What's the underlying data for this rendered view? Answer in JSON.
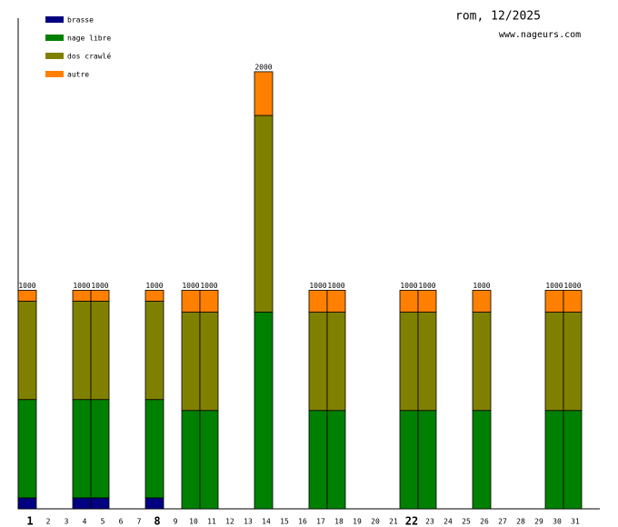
{
  "chart_data": {
    "type": "stacked_bar",
    "title": "rom, 12/2025",
    "subtitle": "www.nageurs.com",
    "categories": [
      "1",
      "2",
      "3",
      "4",
      "5",
      "6",
      "7",
      "8",
      "9",
      "10",
      "11",
      "12",
      "13",
      "14",
      "15",
      "16",
      "17",
      "18",
      "19",
      "20",
      "21",
      "22",
      "23",
      "24",
      "25",
      "26",
      "27",
      "28",
      "29",
      "30",
      "31"
    ],
    "bold_categories": [
      "1",
      "8",
      "22"
    ],
    "series": [
      {
        "name": "brasse",
        "color": "#000080",
        "values": [
          50,
          null,
          null,
          50,
          50,
          null,
          null,
          50,
          null,
          null,
          null,
          null,
          null,
          null,
          null,
          null,
          null,
          null,
          null,
          null,
          null,
          null,
          null,
          null,
          null,
          null,
          null,
          null,
          null,
          null,
          null
        ]
      },
      {
        "name": "nage libre",
        "color": "#008000",
        "values": [
          450,
          null,
          null,
          450,
          450,
          null,
          null,
          450,
          null,
          450,
          450,
          null,
          null,
          900,
          null,
          null,
          450,
          450,
          null,
          null,
          null,
          450,
          450,
          null,
          null,
          450,
          null,
          null,
          null,
          450,
          450
        ]
      },
      {
        "name": "dos crawlé",
        "color": "#808000",
        "values": [
          450,
          null,
          null,
          450,
          450,
          null,
          null,
          450,
          null,
          450,
          450,
          null,
          null,
          900,
          null,
          null,
          450,
          450,
          null,
          null,
          null,
          450,
          450,
          null,
          null,
          450,
          null,
          null,
          null,
          450,
          450
        ]
      },
      {
        "name": "autre",
        "color": "#ff8000",
        "values": [
          50,
          null,
          null,
          50,
          50,
          null,
          null,
          50,
          null,
          100,
          100,
          null,
          null,
          200,
          null,
          null,
          100,
          100,
          null,
          null,
          null,
          100,
          100,
          null,
          null,
          100,
          null,
          null,
          null,
          100,
          100
        ]
      }
    ],
    "totals": [
      1000,
      null,
      null,
      1000,
      1000,
      null,
      null,
      1000,
      null,
      1000,
      1000,
      null,
      null,
      2000,
      null,
      null,
      1000,
      1000,
      null,
      null,
      null,
      1000,
      1000,
      null,
      null,
      1000,
      null,
      null,
      null,
      1000,
      1000
    ],
    "ylim": [
      0,
      2245
    ]
  }
}
